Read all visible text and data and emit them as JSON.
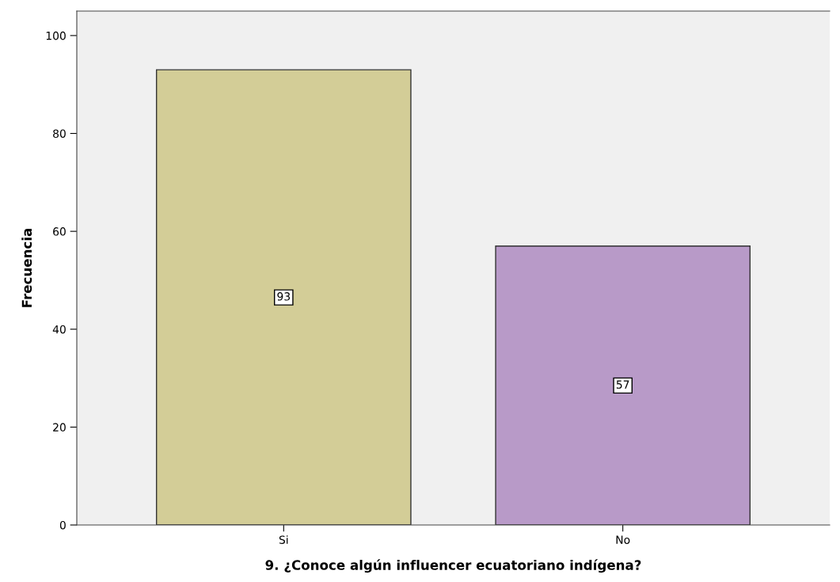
{
  "chart_data": {
    "type": "bar",
    "xlabel": "9. ¿Conoce algún influencer ecuatoriano indígena?",
    "ylabel": "Frecuencia",
    "categories": [
      "Si",
      "No"
    ],
    "values": [
      93,
      57
    ],
    "colors": [
      "#d3cd97",
      "#b89ac8"
    ],
    "ylim": [
      0,
      105
    ],
    "yticks": [
      0,
      20,
      40,
      60,
      80,
      100
    ],
    "data_labels": true,
    "grid": false,
    "legend": false
  }
}
